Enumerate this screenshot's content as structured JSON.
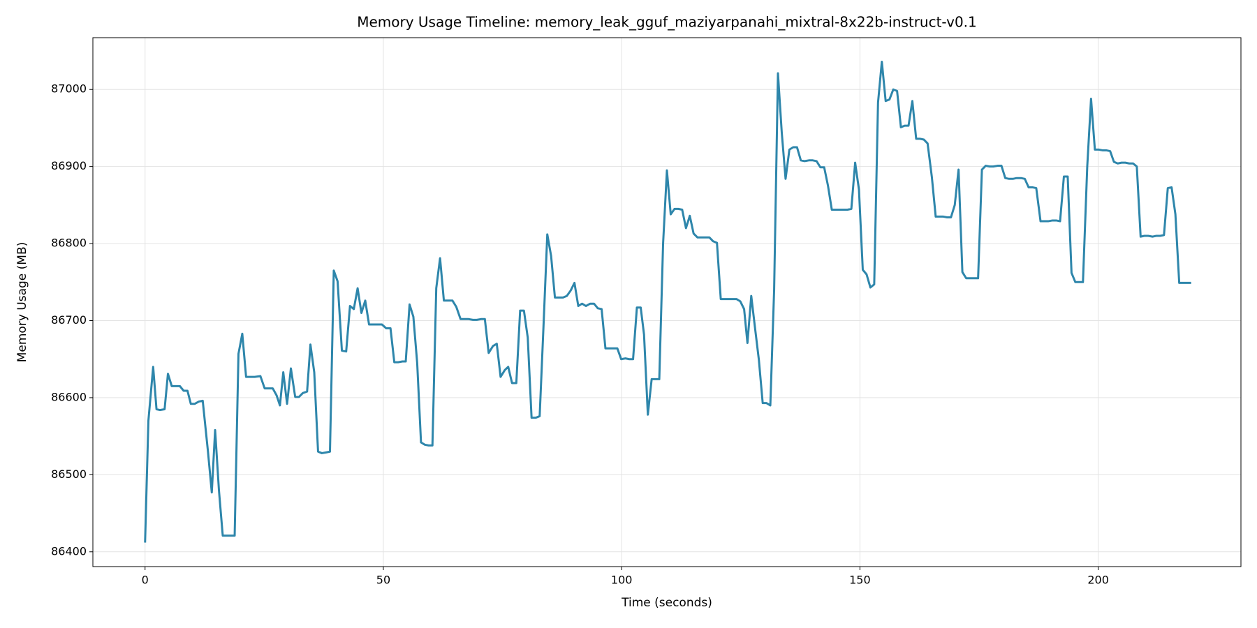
{
  "chart_data": {
    "type": "line",
    "title": "Memory Usage Timeline: memory_leak_gguf_maziyarpanahi_mixtral-8x22b-instruct-v0.1",
    "x_label": "Time (seconds)",
    "y_label": "Memory Usage (MB)",
    "xlim": [
      -10.95,
      229.95
    ],
    "ylim": [
      86380.8,
      87067.2
    ],
    "xticks": [
      0,
      50,
      100,
      150,
      200
    ],
    "yticks": [
      86400,
      86500,
      86600,
      86700,
      86800,
      86900,
      87000
    ],
    "grid": true,
    "x": [
      0,
      0.7,
      1.7,
      2.4,
      3.1,
      4.1,
      4.8,
      5.6,
      6.4,
      7.3,
      8.1,
      8.9,
      9.6,
      10.4,
      11.3,
      12.1,
      13.2,
      14.0,
      14.7,
      15.5,
      16.3,
      17.2,
      18.0,
      18.8,
      19.6,
      20.4,
      21.2,
      22.1,
      23.0,
      24.2,
      25.1,
      26.0,
      26.8,
      27.6,
      28.3,
      29.0,
      29.8,
      30.6,
      31.5,
      32.3,
      33.1,
      34.0,
      34.7,
      35.5,
      36.3,
      37.1,
      38.0,
      38.8,
      39.6,
      40.4,
      41.3,
      42.2,
      43.0,
      43.8,
      44.6,
      45.4,
      46.2,
      47.0,
      47.9,
      48.8,
      49.7,
      50.6,
      51.5,
      52.3,
      53.1,
      54.0,
      54.7,
      55.5,
      56.3,
      57.1,
      57.9,
      58.7,
      59.5,
      60.3,
      61.1,
      61.9,
      62.7,
      63.6,
      64.5,
      65.3,
      66.2,
      67.0,
      67.9,
      68.8,
      69.6,
      70.5,
      71.3,
      72.1,
      73.0,
      73.8,
      74.6,
      75.5,
      76.2,
      77.0,
      77.9,
      78.7,
      79.5,
      80.3,
      81.1,
      82.0,
      82.8,
      83.6,
      84.4,
      85.2,
      86.0,
      86.8,
      87.7,
      88.5,
      89.3,
      90.1,
      90.9,
      91.7,
      92.5,
      93.4,
      94.2,
      95.0,
      95.8,
      96.6,
      97.5,
      98.3,
      99.1,
      99.9,
      100.8,
      101.6,
      102.4,
      103.2,
      104.0,
      104.7,
      105.5,
      106.3,
      107.1,
      107.9,
      108.7,
      109.5,
      110.3,
      111.1,
      111.9,
      112.7,
      113.5,
      114.3,
      115.1,
      115.9,
      116.7,
      117.6,
      118.4,
      119.2,
      120.0,
      120.8,
      121.7,
      122.5,
      123.3,
      124.1,
      124.9,
      125.7,
      126.4,
      127.2,
      128.0,
      128.8,
      129.6,
      130.4,
      131.2,
      132.0,
      132.8,
      133.6,
      134.4,
      135.2,
      136.0,
      136.8,
      137.6,
      138.4,
      139.3,
      140.1,
      140.9,
      141.7,
      142.5,
      143.3,
      144.1,
      144.9,
      145.7,
      146.5,
      147.4,
      148.2,
      149.0,
      149.8,
      150.6,
      151.4,
      152.2,
      153.0,
      153.8,
      154.6,
      155.4,
      156.2,
      157.0,
      157.8,
      158.6,
      159.4,
      160.2,
      161.0,
      161.8,
      162.6,
      163.4,
      164.2,
      165.1,
      165.9,
      166.7,
      167.5,
      168.3,
      169.1,
      169.9,
      170.7,
      171.5,
      172.3,
      173.1,
      174.0,
      174.8,
      175.6,
      176.4,
      177.2,
      178.0,
      178.9,
      179.7,
      180.5,
      181.3,
      182.1,
      182.9,
      183.8,
      184.6,
      185.4,
      186.2,
      187.0,
      187.9,
      188.7,
      189.5,
      190.4,
      191.2,
      192.0,
      192.8,
      193.6,
      194.4,
      195.2,
      196.0,
      196.8,
      197.7,
      198.5,
      199.3,
      200.1,
      200.9,
      201.7,
      202.5,
      203.3,
      204.1,
      204.9,
      205.7,
      206.5,
      207.3,
      208.1,
      208.9,
      209.7,
      210.5,
      211.4,
      212.2,
      213.0,
      213.8,
      214.6,
      215.4,
      216.2,
      217.0,
      217.9,
      218.7,
      219.5
    ],
    "series": [
      {
        "color": "#2e86ab",
        "values": [
          86412,
          86570,
          86640,
          86585,
          86584,
          86585,
          86631,
          86615,
          86615,
          86615,
          86609,
          86609,
          86592,
          86592,
          86595,
          86596,
          86530,
          86477,
          86558,
          86480,
          86421,
          86421,
          86421,
          86421,
          86657,
          86683,
          86627,
          86627,
          86627,
          86628,
          86612,
          86612,
          86612,
          86603,
          86590,
          86633,
          86592,
          86638,
          86601,
          86601,
          86606,
          86608,
          86669,
          86633,
          86530,
          86528,
          86529,
          86530,
          86765,
          86751,
          86661,
          86660,
          86719,
          86715,
          86742,
          86710,
          86726,
          86695,
          86695,
          86695,
          86695,
          86690,
          86690,
          86646,
          86646,
          86647,
          86647,
          86721,
          86705,
          86645,
          86542,
          86539,
          86538,
          86538,
          86742,
          86781,
          86726,
          86726,
          86726,
          86718,
          86702,
          86702,
          86702,
          86701,
          86701,
          86702,
          86702,
          86658,
          86667,
          86670,
          86627,
          86636,
          86640,
          86619,
          86619,
          86713,
          86713,
          86678,
          86574,
          86574,
          86576,
          86692,
          86812,
          86784,
          86730,
          86730,
          86730,
          86732,
          86739,
          86749,
          86719,
          86722,
          86719,
          86722,
          86722,
          86716,
          86715,
          86664,
          86664,
          86664,
          86664,
          86650,
          86651,
          86650,
          86650,
          86717,
          86717,
          86682,
          86578,
          86624,
          86624,
          86624,
          86800,
          86895,
          86838,
          86845,
          86845,
          86844,
          86820,
          86836,
          86813,
          86808,
          86808,
          86808,
          86808,
          86803,
          86801,
          86728,
          86728,
          86728,
          86728,
          86728,
          86725,
          86715,
          86671,
          86732,
          86690,
          86649,
          86593,
          86593,
          86590,
          86740,
          87021,
          86944,
          86884,
          86922,
          86925,
          86925,
          86908,
          86907,
          86908,
          86908,
          86907,
          86899,
          86899,
          86875,
          86844,
          86844,
          86844,
          86844,
          86844,
          86845,
          86905,
          86870,
          86766,
          86760,
          86743,
          86747,
          86983,
          87036,
          86985,
          86987,
          87000,
          86998,
          86951,
          86953,
          86953,
          86985,
          86936,
          86936,
          86935,
          86930,
          86886,
          86835,
          86835,
          86835,
          86834,
          86834,
          86850,
          86896,
          86763,
          86755,
          86755,
          86755,
          86755,
          86896,
          86901,
          86900,
          86900,
          86901,
          86901,
          86885,
          86884,
          86884,
          86885,
          86885,
          86884,
          86873,
          86873,
          86872,
          86829,
          86829,
          86829,
          86830,
          86830,
          86829,
          86887,
          86887,
          86762,
          86750,
          86750,
          86750,
          86900,
          86988,
          86922,
          86922,
          86921,
          86921,
          86920,
          86906,
          86904,
          86905,
          86905,
          86904,
          86904,
          86900,
          86809,
          86810,
          86810,
          86809,
          86810,
          86810,
          86811,
          86872,
          86873,
          86838,
          86749,
          86749,
          86749,
          86749
        ]
      }
    ]
  }
}
